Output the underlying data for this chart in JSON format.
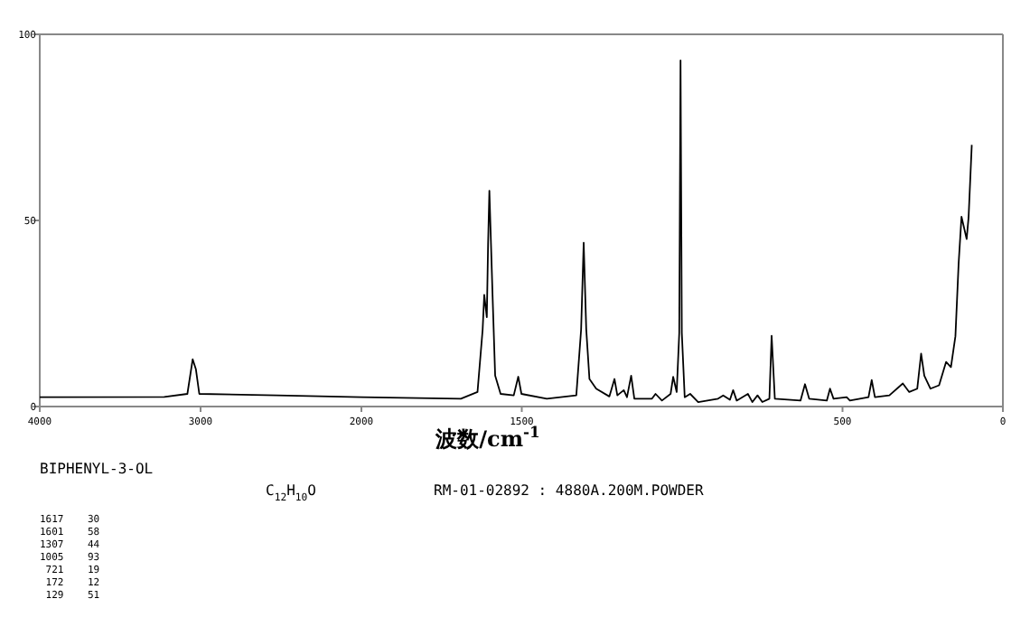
{
  "chart_data": [
    {
      "type": "line",
      "title": "BIPHENYL-3-OL",
      "subtitle": "C$_{12}$H$_{10}$O",
      "xlim": [
        4000,
        2000
      ],
      "xticks": [
        4000,
        3000,
        2000
      ],
      "ylim": [
        0,
        100
      ],
      "yticks": [
        0,
        50,
        100
      ],
      "annotations": [
        "RM-01-02892 : 4880A.200M.POWDER",
        "1617    30",
        "1601    58",
        "1307    44",
        "1005    93",
        " 721    19",
        " 172    12",
        " 129    51"
      ],
      "x": [
        4000,
        3226,
        3082,
        3049,
        3029,
        3008,
        2527,
        2000
      ],
      "values": [
        2.5,
        2.6,
        3.4,
        12.7,
        10,
        3.4,
        3,
        2.5
      ],
      "color": "#000000"
    },
    {
      "type": "line",
      "xlabel": "波数/cm$^{-1}$",
      "xlim": [
        2000,
        0
      ],
      "xticks": [
        1500,
        500,
        0
      ],
      "ylim": [
        0,
        100
      ],
      "tick_labels": "x",
      "x": [
        2000,
        1690,
        1638,
        1622,
        1617,
        1609,
        1605,
        1601,
        1591,
        1583,
        1566,
        1525,
        1511,
        1501,
        1422,
        1330,
        1315,
        1307,
        1299,
        1289,
        1268,
        1227,
        1211,
        1202,
        1182,
        1172,
        1159,
        1149,
        1094,
        1083,
        1063,
        1036,
        1028,
        1017,
        1009,
        1005,
        1001,
        992,
        975,
        950,
        888,
        872,
        851,
        841,
        830,
        795,
        781,
        765,
        750,
        728,
        721,
        711,
        631,
        617,
        604,
        549,
        539,
        528,
        487,
        477,
        419,
        409,
        399,
        354,
        312,
        292,
        267,
        255,
        245,
        226,
        199,
        177,
        162,
        148,
        138,
        129,
        113,
        107,
        97
      ],
      "values": [
        2.5,
        2.1,
        3.9,
        20.7,
        30,
        24,
        43.7,
        58,
        29.6,
        8.3,
        3.4,
        3,
        8,
        3.4,
        2.1,
        3,
        20.7,
        44,
        20.7,
        7.4,
        4.8,
        2.7,
        7.4,
        3,
        4.4,
        2.5,
        8.3,
        2.1,
        2.1,
        3.4,
        1.6,
        3.4,
        8,
        3.9,
        19.8,
        93,
        19.8,
        2.5,
        3.4,
        1.2,
        2.1,
        3,
        1.8,
        4.4,
        1.6,
        3.4,
        1.2,
        3,
        1.2,
        2.1,
        19,
        2.1,
        1.6,
        6,
        2.1,
        1.6,
        4.8,
        2.1,
        2.5,
        1.6,
        2.5,
        7.1,
        2.5,
        3,
        6.2,
        3.9,
        4.8,
        14.2,
        8.3,
        4.8,
        5.7,
        12,
        10.6,
        18.9,
        38.4,
        51,
        45,
        50.8,
        70.3
      ],
      "color": "#000000"
    }
  ]
}
